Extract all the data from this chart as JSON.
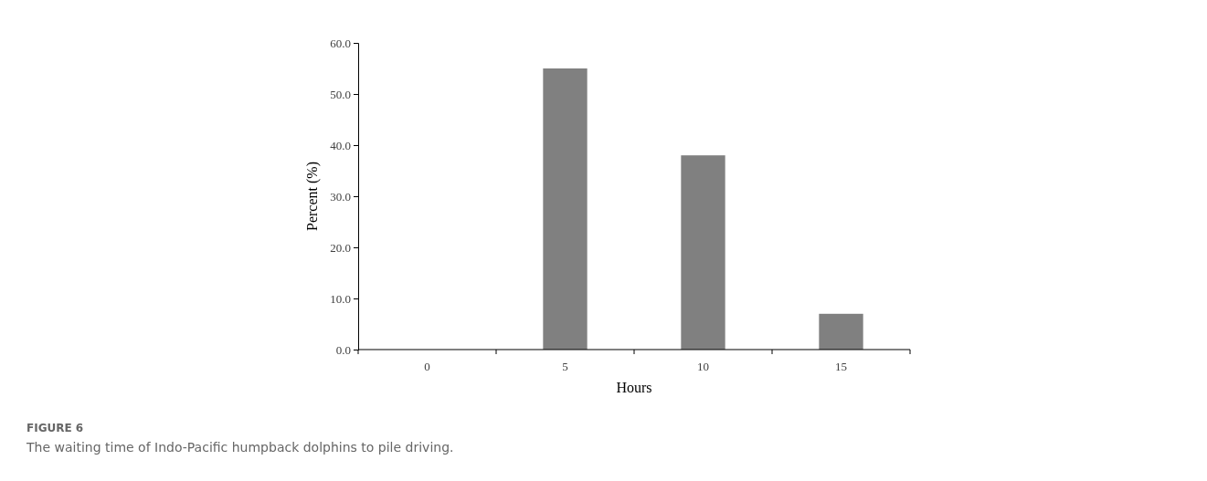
{
  "chart_data": {
    "type": "bar",
    "title": "FIGURE 6",
    "annotations": [
      "The waiting time of Indo-Pacific humpback dolphins to pile driving."
    ],
    "xlabel": "Hours",
    "ylabel": "Percent (%)",
    "categories": [
      "0",
      "5",
      "10",
      "15"
    ],
    "values": [
      0,
      55,
      38,
      7
    ],
    "color": "#808080",
    "ylim": [
      0,
      60
    ],
    "yticks": [
      {
        "value": 0,
        "label": "0.0"
      },
      {
        "value": 10,
        "label": "10.0"
      },
      {
        "value": 20,
        "label": "20.0"
      },
      {
        "value": 30,
        "label": "30.0"
      },
      {
        "value": 40,
        "label": "40.0"
      },
      {
        "value": 50,
        "label": "50.0"
      },
      {
        "value": 60,
        "label": "60.0"
      }
    ]
  }
}
